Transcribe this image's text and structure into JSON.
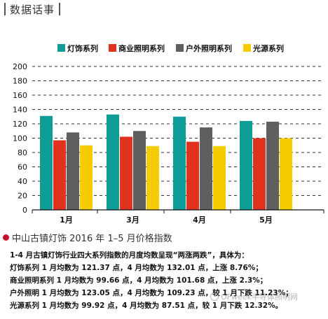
{
  "header": {
    "title": "数据话事"
  },
  "colors": {
    "series": [
      "#0e9c96",
      "#e0321e",
      "#5f5f5f",
      "#f5cc00"
    ],
    "caption_dot": "#c8102e"
  },
  "chart_data": {
    "type": "bar",
    "categories": [
      "1月",
      "3月",
      "4月",
      "5月"
    ],
    "series": [
      {
        "name": "灯饰系列",
        "values": [
          131,
          133,
          130,
          124
        ]
      },
      {
        "name": "商业照明系列",
        "values": [
          97,
          102,
          95,
          100
        ]
      },
      {
        "name": "户外照明系列",
        "values": [
          108,
          110,
          115,
          123
        ]
      },
      {
        "name": "光源系列",
        "values": [
          90,
          89,
          89,
          100
        ]
      }
    ],
    "ylim": [
      0,
      200
    ],
    "yticks": [
      "0",
      "20",
      "40",
      "60",
      "80",
      "100",
      "120",
      "140",
      "160",
      "180",
      "200"
    ],
    "grid": true,
    "legend_position": "top"
  },
  "caption": "中山古镇灯饰 2016 年 1–5 月价格指数",
  "notes": [
    "1-4 月古镇灯饰行业四大系列指数的月度均数呈现“两涨两跌”，具体为：",
    "灯饰系列 1 月均数为 121.37 点，4 月均数为 132.01 点，上涨 8.76%；",
    "商业照明系列 1 月均数为 99.66 点，4 月均数为 101.68 点，上涨 2.3%；",
    "户外照明 1 月均数为 123.05 点，4 月均数为 109.23 点，较 1 月下跌 11.23%；",
    "光源系列 1 月均数为 99.92 点，4 月均数为 87.51 点，较 1 月下跌 12.32%。"
  ],
  "watermark": "OFweek半导体照明网"
}
